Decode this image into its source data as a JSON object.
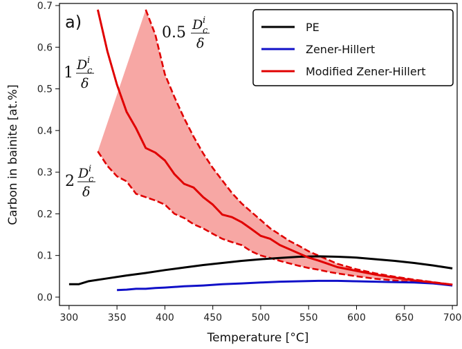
{
  "chart_data": {
    "type": "line",
    "panel_label": "a)",
    "xlabel": "Temperature [°C]",
    "ylabel": "Carbon in bainite [at.%]",
    "xlim": [
      290,
      705
    ],
    "ylim": [
      -0.02,
      0.705
    ],
    "xticks": [
      300,
      350,
      400,
      450,
      500,
      550,
      600,
      650,
      700
    ],
    "yticks": [
      0.0,
      0.1,
      0.2,
      0.3,
      0.4,
      0.5,
      0.6,
      0.7
    ],
    "legend_position": "top-right",
    "series": [
      {
        "name": "PE",
        "color": "#000000",
        "style": "solid",
        "x": [
          300,
          310,
          320,
          340,
          360,
          380,
          400,
          420,
          440,
          460,
          480,
          500,
          520,
          540,
          560,
          580,
          600,
          620,
          640,
          660,
          680,
          700
        ],
        "y": [
          0.031,
          0.031,
          0.038,
          0.045,
          0.052,
          0.058,
          0.065,
          0.071,
          0.077,
          0.082,
          0.087,
          0.091,
          0.094,
          0.097,
          0.098,
          0.097,
          0.095,
          0.091,
          0.087,
          0.082,
          0.076,
          0.069
        ]
      },
      {
        "name": "Zener-Hillert",
        "color": "#1010c8",
        "style": "solid",
        "x": [
          350,
          360,
          370,
          380,
          390,
          400,
          420,
          440,
          460,
          480,
          500,
          520,
          540,
          560,
          580,
          600,
          620,
          640,
          660,
          680,
          700
        ],
        "y": [
          0.017,
          0.018,
          0.02,
          0.02,
          0.022,
          0.023,
          0.026,
          0.028,
          0.031,
          0.033,
          0.035,
          0.037,
          0.038,
          0.039,
          0.039,
          0.038,
          0.037,
          0.036,
          0.035,
          0.033,
          0.028
        ]
      },
      {
        "name": "Modified Zener-Hillert",
        "color": "#e00000",
        "style": "solid",
        "x": [
          330,
          340,
          350,
          360,
          370,
          380,
          390,
          400,
          410,
          420,
          430,
          440,
          450,
          460,
          470,
          480,
          490,
          500,
          510,
          520,
          530,
          540,
          550,
          560,
          570,
          580,
          600,
          620,
          640,
          660,
          680,
          700
        ],
        "y": [
          0.69,
          0.59,
          0.51,
          0.445,
          0.405,
          0.358,
          0.347,
          0.328,
          0.295,
          0.272,
          0.263,
          0.24,
          0.222,
          0.198,
          0.192,
          0.18,
          0.164,
          0.147,
          0.14,
          0.125,
          0.115,
          0.105,
          0.095,
          0.088,
          0.08,
          0.072,
          0.063,
          0.054,
          0.047,
          0.04,
          0.035,
          0.03
        ]
      }
    ],
    "band": {
      "color": "#e00000",
      "fill": "#f7a7a4",
      "upper": {
        "x": [
          380,
          390,
          400,
          410,
          420,
          430,
          440,
          450,
          460,
          470,
          480,
          490,
          500,
          510,
          520,
          530,
          540,
          550,
          560,
          570,
          580,
          600,
          620,
          640,
          660,
          680,
          700
        ],
        "y": [
          0.69,
          0.63,
          0.535,
          0.48,
          0.43,
          0.385,
          0.345,
          0.31,
          0.28,
          0.25,
          0.225,
          0.205,
          0.185,
          0.165,
          0.15,
          0.135,
          0.123,
          0.11,
          0.1,
          0.09,
          0.08,
          0.067,
          0.057,
          0.049,
          0.042,
          0.036,
          0.03
        ]
      },
      "lower": {
        "x": [
          330,
          340,
          350,
          360,
          370,
          380,
          390,
          400,
          410,
          420,
          430,
          440,
          450,
          460,
          470,
          480,
          490,
          500,
          510,
          520,
          530,
          540,
          550,
          560,
          570,
          580,
          600,
          620,
          640,
          660,
          680,
          700
        ],
        "y": [
          0.35,
          0.315,
          0.29,
          0.278,
          0.248,
          0.24,
          0.232,
          0.222,
          0.2,
          0.19,
          0.175,
          0.165,
          0.152,
          0.14,
          0.132,
          0.125,
          0.11,
          0.1,
          0.094,
          0.087,
          0.081,
          0.075,
          0.07,
          0.066,
          0.061,
          0.057,
          0.05,
          0.044,
          0.04,
          0.036,
          0.033,
          0.03
        ]
      }
    },
    "annotations": [
      {
        "coef": "1",
        "num": "D",
        "sub": "c",
        "sup": "i",
        "den": "δ"
      },
      {
        "coef": "0.5",
        "num": "D",
        "sub": "c",
        "sup": "i",
        "den": "δ"
      },
      {
        "coef": "2",
        "num": "D",
        "sub": "c",
        "sup": "i",
        "den": "δ"
      }
    ]
  }
}
